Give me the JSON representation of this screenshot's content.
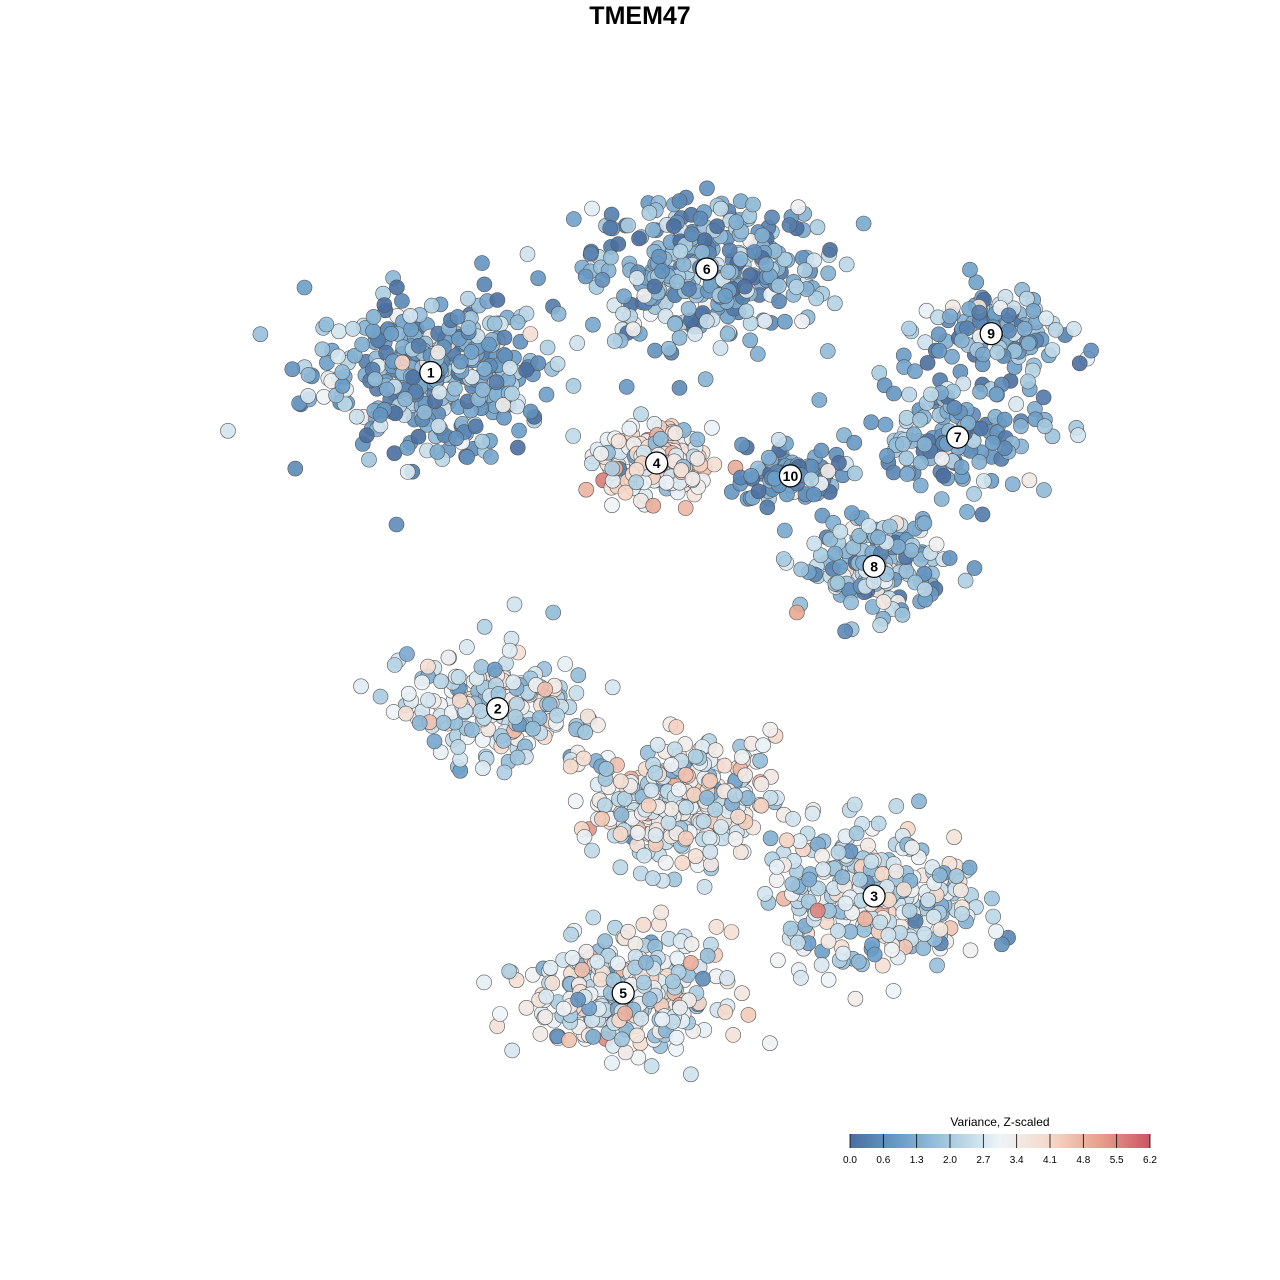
{
  "chart_data": {
    "type": "scatter",
    "title": "TMEM47",
    "xlabel": "",
    "ylabel": "",
    "grid": false,
    "legend_placement": "bottom-right",
    "colorbar": {
      "title": "Variance, Z-scaled",
      "ticks": [
        "0.0",
        "0.6",
        "1.3",
        "2.0",
        "2.7",
        "3.4",
        "4.1",
        "4.8",
        "5.5",
        "6.2"
      ],
      "range": [
        0.0,
        6.2
      ],
      "colors": [
        "#4a6fa0",
        "#6a9dc8",
        "#a7cbe0",
        "#eef4f8",
        "#f6d8c8",
        "#e7a08c",
        "#cc5563"
      ]
    },
    "clusters": [
      {
        "label": "1",
        "x": 0.17,
        "y": 0.66,
        "spread": 0.13,
        "n": 380,
        "level": 1.4
      },
      {
        "label": "6",
        "x": 0.5,
        "y": 0.82,
        "spread": 0.13,
        "n": 340,
        "level": 1.3
      },
      {
        "label": "9",
        "x": 0.84,
        "y": 0.72,
        "spread": 0.08,
        "n": 110,
        "level": 1.4
      },
      {
        "label": "7",
        "x": 0.8,
        "y": 0.56,
        "spread": 0.1,
        "n": 150,
        "level": 1.3
      },
      {
        "label": "4",
        "x": 0.44,
        "y": 0.52,
        "spread": 0.06,
        "n": 190,
        "level": 3.3
      },
      {
        "label": "10",
        "x": 0.6,
        "y": 0.5,
        "spread": 0.05,
        "n": 80,
        "level": 1.0
      },
      {
        "label": "8",
        "x": 0.7,
        "y": 0.36,
        "spread": 0.08,
        "n": 170,
        "level": 1.8
      },
      {
        "label": "2",
        "x": 0.25,
        "y": 0.14,
        "spread": 0.1,
        "n": 200,
        "level": 2.6
      },
      {
        "label": "3",
        "x": 0.7,
        "y": -0.15,
        "spread": 0.12,
        "n": 300,
        "level": 2.6
      },
      {
        "label": "5",
        "x": 0.4,
        "y": -0.3,
        "spread": 0.1,
        "n": 300,
        "level": 2.8
      },
      {
        "label": "",
        "x": 0.47,
        "y": 0.0,
        "spread": 0.1,
        "n": 300,
        "level": 3.0
      }
    ],
    "xlim": [
      -0.1,
      1.0
    ],
    "ylim": [
      -0.45,
      0.95
    ]
  }
}
